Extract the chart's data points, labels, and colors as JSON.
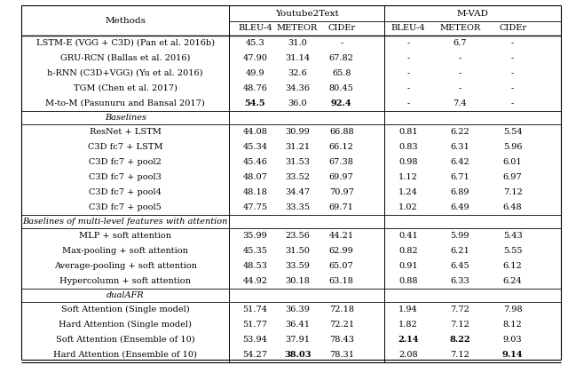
{
  "col_headers_top": [
    "Youtube2Text",
    "M-VAD"
  ],
  "col_headers_sub": [
    "BLEU-4",
    "METEOR",
    "CIDEr",
    "BLEU-4",
    "METEOR",
    "CIDEr"
  ],
  "row_header": "Methods",
  "sections": [
    {
      "section_label": null,
      "rows": [
        {
          "method": "LSTM-E (VGG + C3D) (Pan et al. 2016b)",
          "vals": [
            "45.3",
            "31.0",
            "-",
            "-",
            "6.7",
            "-"
          ],
          "bold": []
        },
        {
          "method": "GRU-RCN (Ballas et al. 2016)",
          "vals": [
            "47.90",
            "31.14",
            "67.82",
            "-",
            "-",
            "-"
          ],
          "bold": []
        },
        {
          "method": "h-RNN (C3D+VGG) (Yu et al. 2016)",
          "vals": [
            "49.9",
            "32.6",
            "65.8",
            "-",
            "-",
            "-"
          ],
          "bold": []
        },
        {
          "method": "TGM (Chen et al. 2017)",
          "vals": [
            "48.76",
            "34.36",
            "80.45",
            "-",
            "-",
            "-"
          ],
          "bold": []
        },
        {
          "method": "M-to-M (Pasunuru and Bansal 2017)",
          "vals": [
            "54.5",
            "36.0",
            "92.4",
            "-",
            "7.4",
            "-"
          ],
          "bold": [
            0,
            2
          ]
        }
      ]
    },
    {
      "section_label": "Baselines",
      "rows": [
        {
          "method": "ResNet + LSTM",
          "vals": [
            "44.08",
            "30.99",
            "66.88",
            "0.81",
            "6.22",
            "5.54"
          ],
          "bold": []
        },
        {
          "method": "C3D fc7 + LSTM",
          "vals": [
            "45.34",
            "31.21",
            "66.12",
            "0.83",
            "6.31",
            "5.96"
          ],
          "bold": []
        },
        {
          "method": "C3D fc7 + pool2",
          "vals": [
            "45.46",
            "31.53",
            "67.38",
            "0.98",
            "6.42",
            "6.01"
          ],
          "bold": []
        },
        {
          "method": "C3D fc7 + pool3",
          "vals": [
            "48.07",
            "33.52",
            "69.97",
            "1.12",
            "6.71",
            "6.97"
          ],
          "bold": []
        },
        {
          "method": "C3D fc7 + pool4",
          "vals": [
            "48.18",
            "34.47",
            "70.97",
            "1.24",
            "6.89",
            "7.12"
          ],
          "bold": []
        },
        {
          "method": "C3D fc7 + pool5",
          "vals": [
            "47.75",
            "33.35",
            "69.71",
            "1.02",
            "6.49",
            "6.48"
          ],
          "bold": []
        }
      ]
    },
    {
      "section_label": "Baselines of multi-level features with attention",
      "rows": [
        {
          "method": "MLP + soft attention",
          "vals": [
            "35.99",
            "23.56",
            "44.21",
            "0.41",
            "5.99",
            "5.43"
          ],
          "bold": []
        },
        {
          "method": "Max-pooling + soft attention",
          "vals": [
            "45.35",
            "31.50",
            "62.99",
            "0.82",
            "6.21",
            "5.55"
          ],
          "bold": []
        },
        {
          "method": "Average-pooling + soft attention",
          "vals": [
            "48.53",
            "33.59",
            "65.07",
            "0.91",
            "6.45",
            "6.12"
          ],
          "bold": []
        },
        {
          "method": "Hypercolumn + soft attention",
          "vals": [
            "44.92",
            "30.18",
            "63.18",
            "0.88",
            "6.33",
            "6.24"
          ],
          "bold": []
        }
      ]
    },
    {
      "section_label": "dualAFR",
      "rows": [
        {
          "method": "Soft Attention (Single model)",
          "vals": [
            "51.74",
            "36.39",
            "72.18",
            "1.94",
            "7.72",
            "7.98"
          ],
          "bold": []
        },
        {
          "method": "Hard Attention (Single model)",
          "vals": [
            "51.77",
            "36.41",
            "72.21",
            "1.82",
            "7.12",
            "8.12"
          ],
          "bold": []
        },
        {
          "method": "Soft Attention (Ensemble of 10)",
          "vals": [
            "53.94",
            "37.91",
            "78.43",
            "2.14",
            "8.22",
            "9.03"
          ],
          "bold": [
            3,
            4
          ]
        },
        {
          "method": "Hard Attention (Ensemble of 10)",
          "vals": [
            "54.27",
            "38.03",
            "78.31",
            "2.08",
            "7.12",
            "9.14"
          ],
          "bold": [
            1,
            5
          ]
        }
      ]
    }
  ],
  "figsize": [
    6.4,
    4.11
  ],
  "dpi": 100
}
